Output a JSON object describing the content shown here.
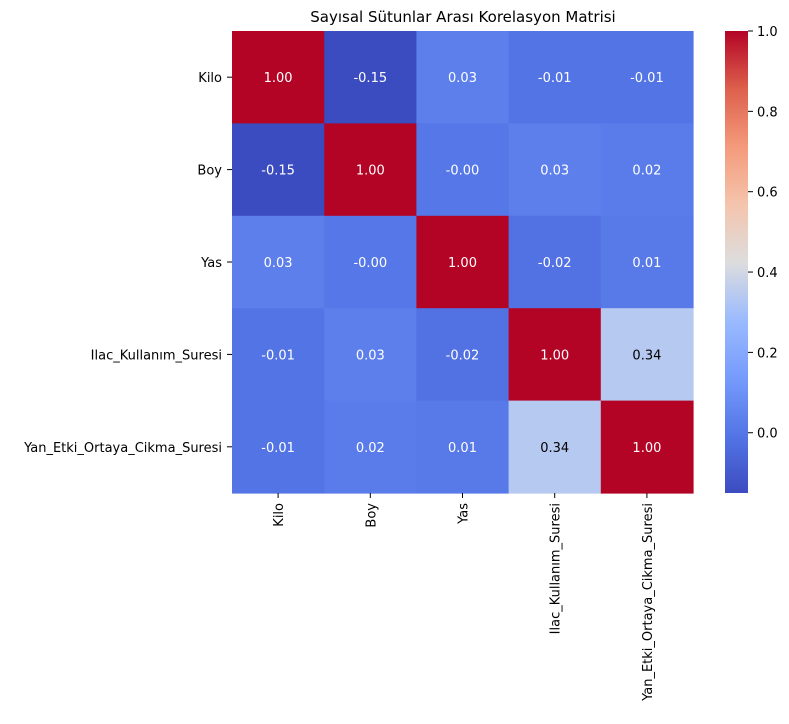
{
  "chart_data": {
    "type": "heatmap",
    "title": "Sayısal Sütunlar Arası Korelasyon Matrisi",
    "xlabel": "",
    "ylabel": "",
    "x_categories": [
      "Kilo",
      "Boy",
      "Yas",
      "Ilac_Kullanım_Suresi",
      "Yan_Etki_Ortaya_Cikma_Suresi"
    ],
    "y_categories": [
      "Kilo",
      "Boy",
      "Yas",
      "Ilac_Kullanım_Suresi",
      "Yan_Etki_Ortaya_Cikma_Suresi"
    ],
    "values": [
      [
        1.0,
        -0.15,
        0.03,
        -0.01,
        -0.01
      ],
      [
        -0.15,
        1.0,
        -0.0,
        0.03,
        0.02
      ],
      [
        0.03,
        -0.0,
        1.0,
        -0.02,
        0.01
      ],
      [
        -0.01,
        0.03,
        -0.02,
        1.0,
        0.34
      ],
      [
        -0.01,
        0.02,
        0.01,
        0.34,
        1.0
      ]
    ],
    "annotations": [
      [
        "1.00",
        "-0.15",
        "0.03",
        "-0.01",
        "-0.01"
      ],
      [
        "-0.15",
        "1.00",
        "-0.00",
        "0.03",
        "0.02"
      ],
      [
        "0.03",
        "-0.00",
        "1.00",
        "-0.02",
        "0.01"
      ],
      [
        "-0.01",
        "0.03",
        "-0.02",
        "1.00",
        "0.34"
      ],
      [
        "-0.01",
        "0.02",
        "0.01",
        "0.34",
        "1.00"
      ]
    ],
    "colormap": "coolwarm",
    "vmin": -0.15,
    "vmax": 1.0,
    "colorbar_ticks": [
      "0.0",
      "0.2",
      "0.4",
      "0.6",
      "0.8",
      "1.0"
    ],
    "grid": false
  }
}
